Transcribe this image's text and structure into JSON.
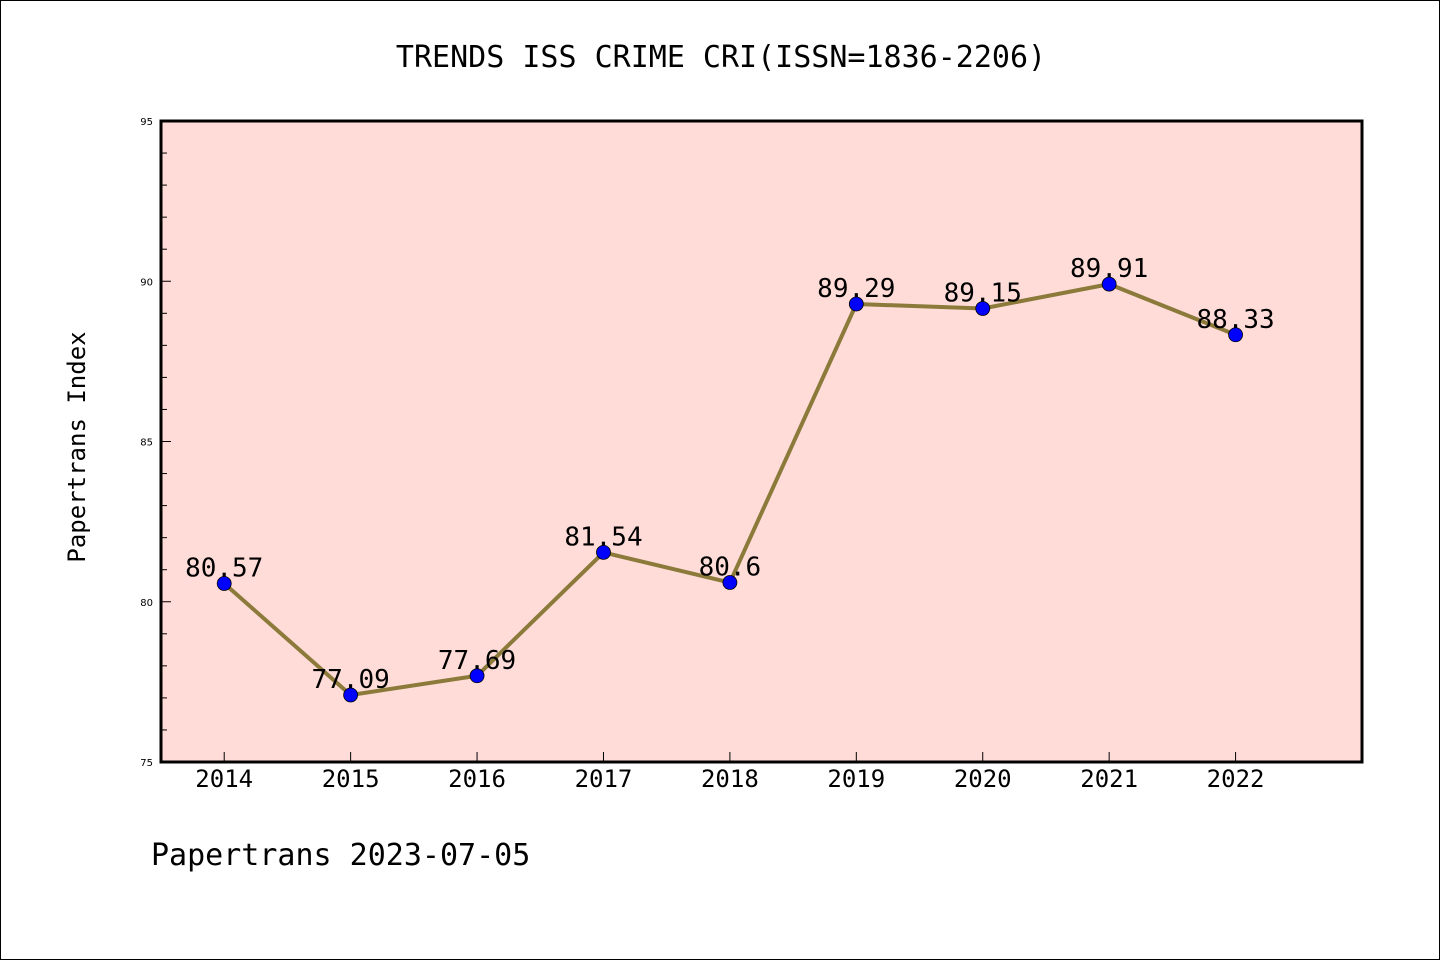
{
  "chart_data": {
    "type": "line",
    "title": "TRENDS ISS CRIME CRI(ISSN=1836-2206)",
    "ylabel": "Papertrans Index",
    "xlabel": "",
    "ylim": [
      75,
      95
    ],
    "yticks": [
      "95",
      "90",
      "85",
      "80",
      "75"
    ],
    "categories": [
      "2014",
      "2015",
      "2016",
      "2017",
      "2018",
      "2019",
      "2020",
      "2021",
      "2022"
    ],
    "values": [
      80.57,
      77.09,
      77.69,
      81.54,
      80.6,
      89.29,
      89.15,
      89.91,
      88.33
    ],
    "labels": [
      "80.57",
      "77.09",
      "77.69",
      "81.54",
      "80.6",
      "89.29",
      "89.15",
      "89.91",
      "88.33"
    ],
    "grid": false,
    "line_color": "#8b7a3a",
    "marker_color": "#0000ff",
    "plot_bg": "#ffdcd8"
  },
  "footer": "Papertrans 2023-07-05"
}
